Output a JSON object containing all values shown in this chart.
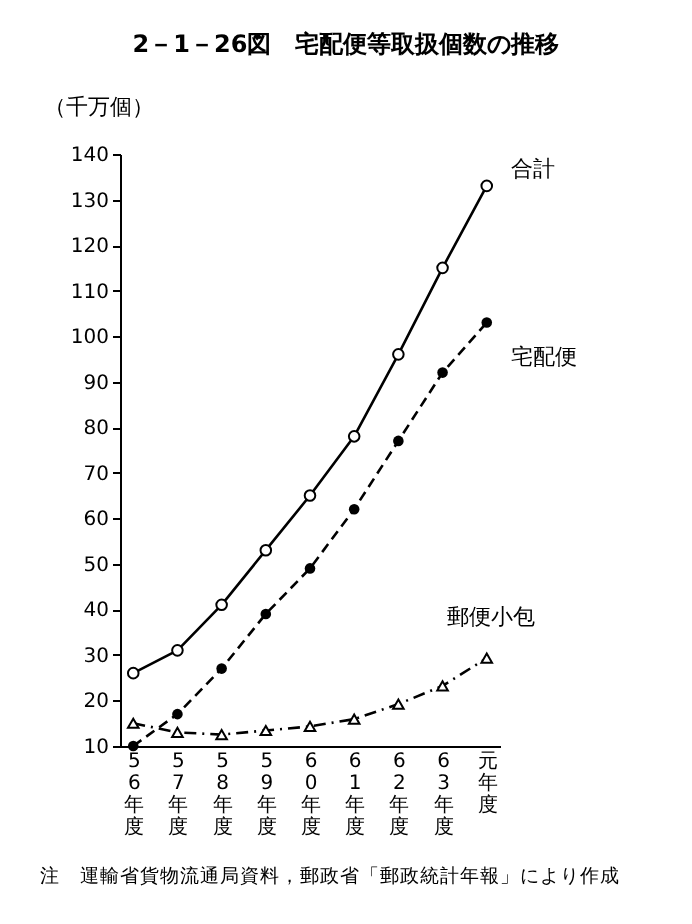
{
  "chart_data": {
    "type": "line",
    "title": "2－1－26図　宅配便等取扱個数の推移",
    "ylabel": "（千万個）",
    "categories": [
      "56年度",
      "57年度",
      "58年度",
      "59年度",
      "60年度",
      "61年度",
      "62年度",
      "63年度",
      "元年度"
    ],
    "series": [
      {
        "name": "合計",
        "color": "#000000",
        "marker": "circle",
        "line_style": "solid",
        "values": [
          26,
          31,
          41,
          53,
          65,
          78,
          96,
          115,
          133
        ]
      },
      {
        "name": "宅配便",
        "color": "#000000",
        "marker": "circle",
        "line_style": "dashed",
        "values": [
          10,
          17,
          27,
          39,
          49,
          62,
          77,
          92,
          103
        ]
      },
      {
        "name": "郵便小包",
        "color": "#000000",
        "marker": "triangle",
        "line_style": "dotted",
        "values": [
          15,
          13,
          12.5,
          13.4,
          14.3,
          15.9,
          19.2,
          23.2,
          29.3
        ]
      }
    ],
    "ylim": [
      10,
      140
    ],
    "yticks": [
      10,
      20,
      30,
      40,
      50,
      60,
      70,
      80,
      90,
      100,
      110,
      120,
      130,
      140
    ],
    "grid": false,
    "annotations": [
      "注　運輸省貨物流通局資料，郵政省「郵政統計年報」により作成"
    ]
  }
}
